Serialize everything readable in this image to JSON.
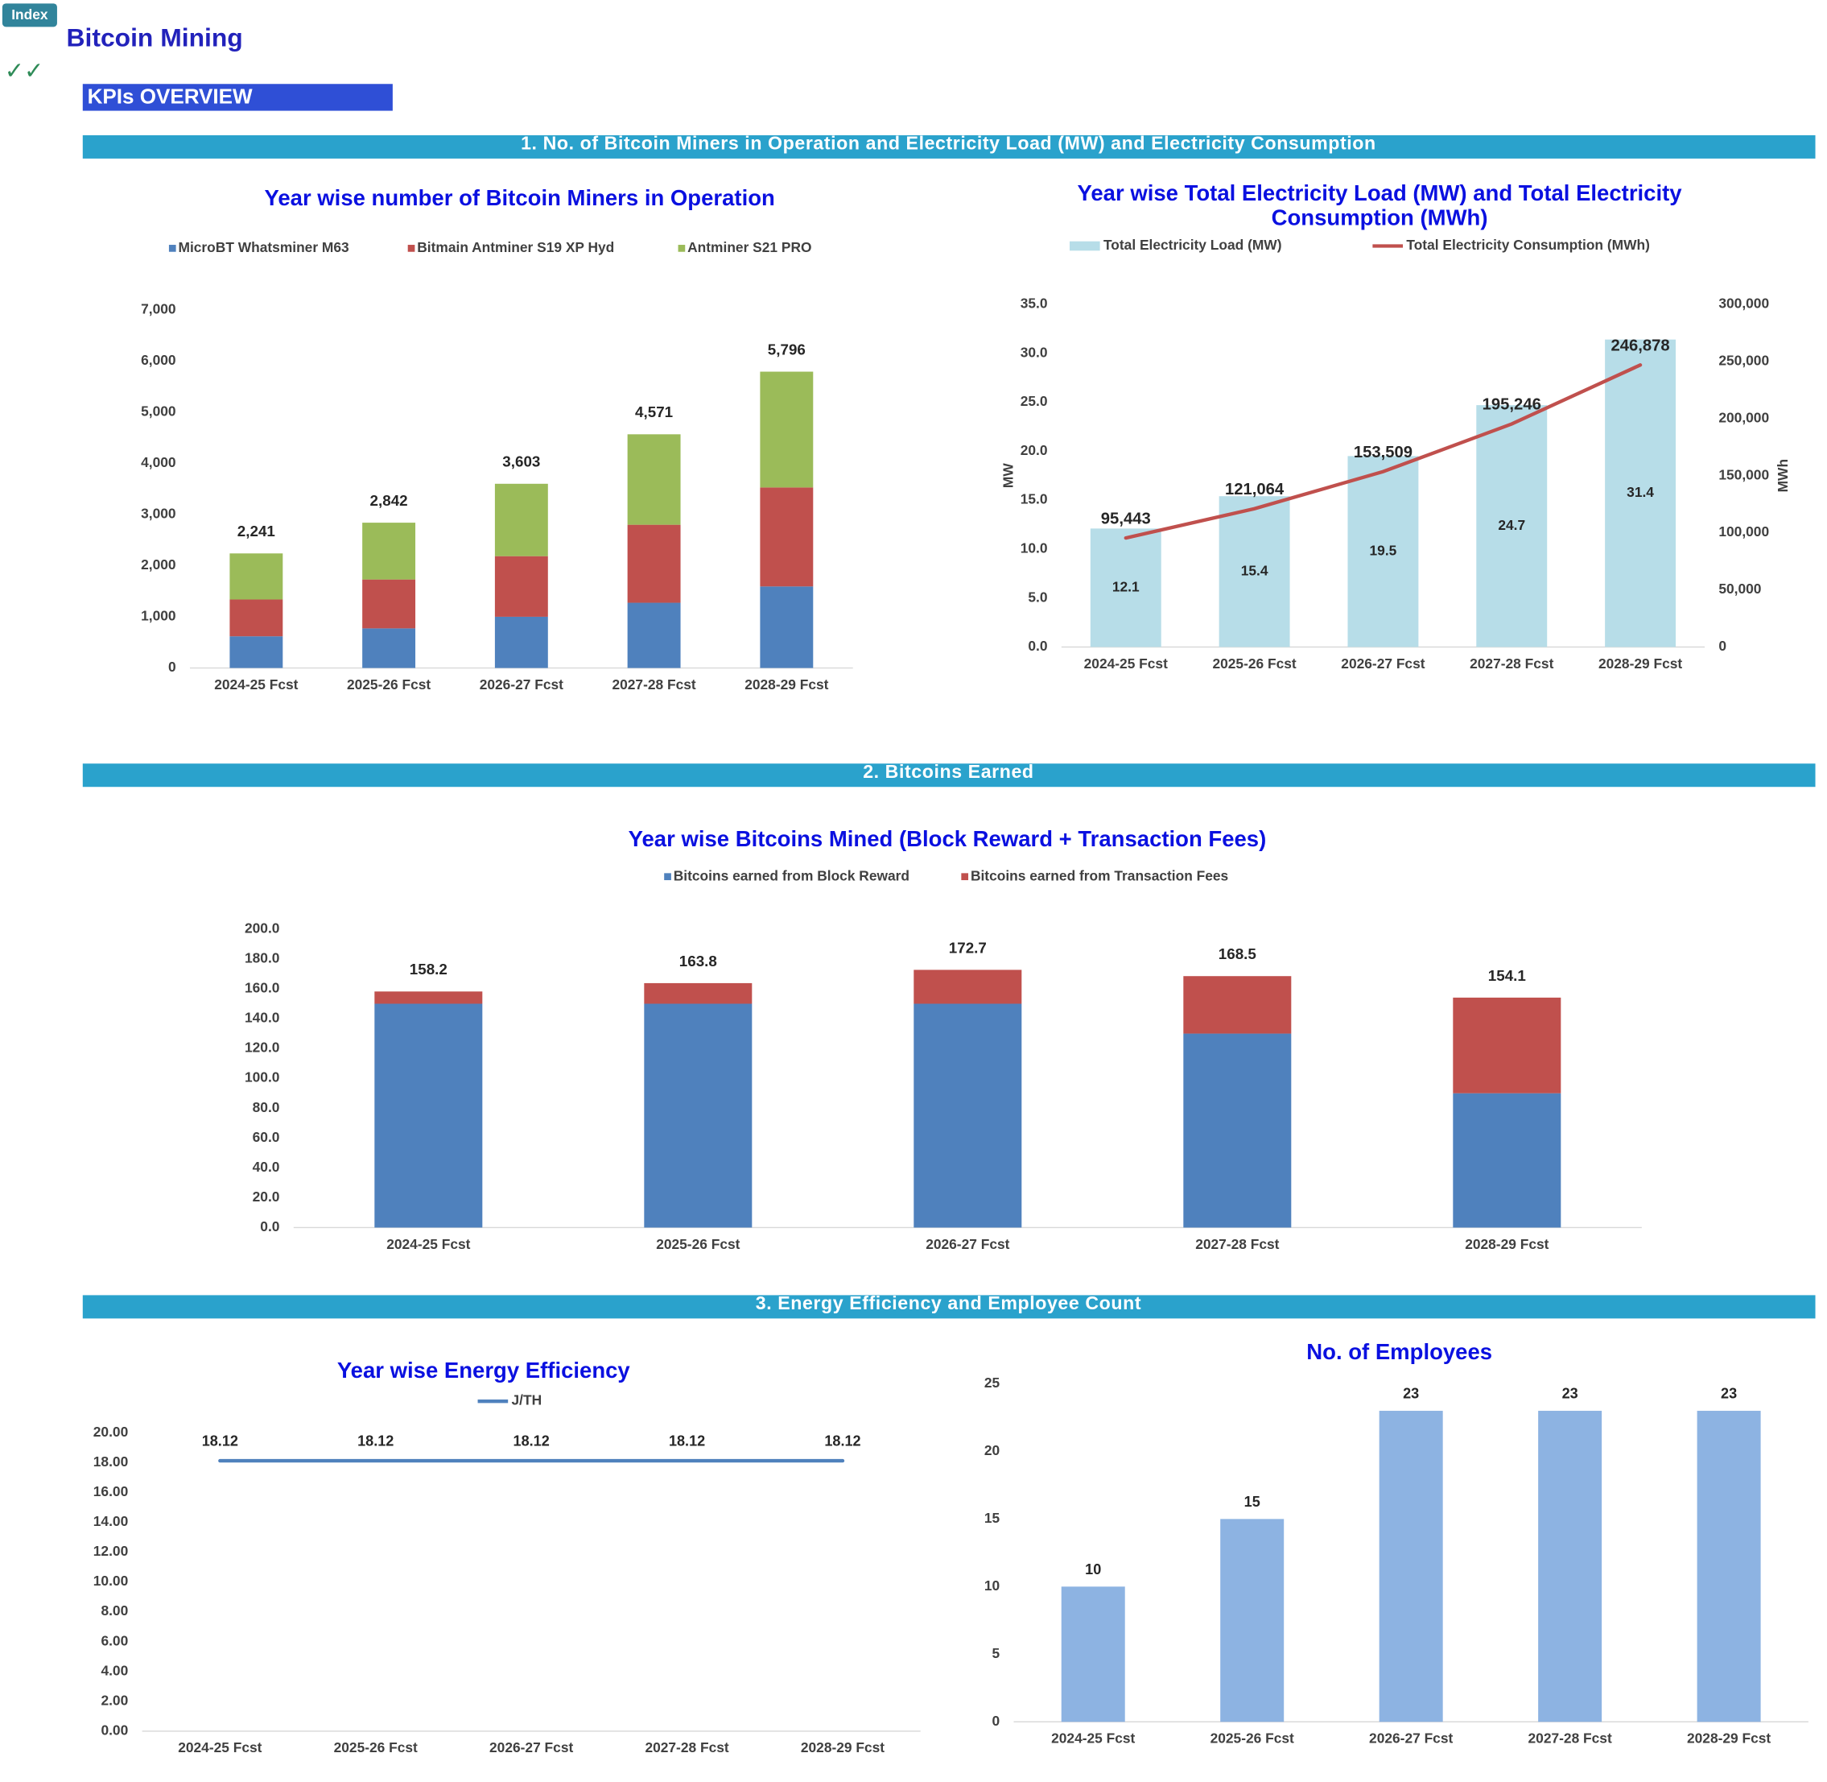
{
  "header": {
    "tab": "Index",
    "title": "Bitcoin Mining",
    "check": "✓✓",
    "subtitle": "KPIs OVERVIEW"
  },
  "sections": [
    "1. No. of Bitcoin Miners in Operation and Electricity Load (MW) and Electricity Consumption",
    "2. Bitcoins Earned",
    "3. Energy Efficiency and Employee Count"
  ],
  "chart_data": [
    {
      "type": "bar",
      "stacked": true,
      "title": "Year wise number of Bitcoin Miners in Operation",
      "categories": [
        "2024-25 Fcst",
        "2025-26 Fcst",
        "2026-27 Fcst",
        "2027-28 Fcst",
        "2028-29 Fcst"
      ],
      "series": [
        {
          "name": "MicroBT Whatsminer M63",
          "color": "#4f81bd",
          "values": [
            620,
            775,
            1002,
            1276,
            1595
          ]
        },
        {
          "name": "Bitmain Antminer S19 XP Hyd",
          "color": "#c0504d",
          "values": [
            720,
            956,
            1185,
            1526,
            1936
          ]
        },
        {
          "name": "Antminer S21 PRO",
          "color": "#9bbb59",
          "values": [
            901,
            1111,
            1416,
            1769,
            2265
          ]
        }
      ],
      "totals": [
        2241,
        2842,
        3603,
        4571,
        5796
      ],
      "total_labels": [
        "2,241",
        "2,842",
        "3,603",
        "4,571",
        "5,796"
      ],
      "ylim": [
        0,
        7000
      ],
      "yticks": [
        0,
        {
          "value": 1000,
          "label": "1,000"
        },
        {
          "value": 2000,
          "label": "2,000"
        },
        {
          "value": 3000,
          "label": "3,000"
        },
        {
          "value": 4000,
          "label": "4,000"
        },
        {
          "value": 5000,
          "label": "5,000"
        },
        {
          "value": 6000,
          "label": "6,000"
        },
        {
          "value": 7000,
          "label": "7,000"
        }
      ],
      "grid": false
    },
    {
      "type": "combo",
      "title": "Year wise Total Electricity Load (MW) and Total Electricity Consumption (MWh)",
      "ylabel": "MW",
      "y2label": "MWh",
      "categories": [
        "2024-25 Fcst",
        "2025-26 Fcst",
        "2026-27 Fcst",
        "2027-28 Fcst",
        "2028-29 Fcst"
      ],
      "series": [
        {
          "name": "Total Electricity Load (MW)",
          "color": "#b7dde8",
          "values": [
            12.1,
            15.4,
            19.5,
            24.7,
            31.4
          ]
        },
        {
          "name": "Total Electricity Consumption (MWh)",
          "color": "#c0504d",
          "axis": "y2",
          "values": [
            95443,
            121064,
            153509,
            195246,
            246878
          ],
          "value_labels": [
            "95,443",
            "121,064",
            "153,509",
            "195,246",
            "246,878"
          ]
        }
      ],
      "ylim": [
        0,
        35
      ],
      "yticks": [
        {
          "value": 0,
          "label": "0.0"
        },
        {
          "value": 5,
          "label": "5.0"
        },
        {
          "value": 10,
          "label": "10.0"
        },
        {
          "value": 15,
          "label": "15.0"
        },
        {
          "value": 20,
          "label": "20.0"
        },
        {
          "value": 25,
          "label": "25.0"
        },
        {
          "value": 30,
          "label": "30.0"
        },
        {
          "value": 35,
          "label": "35.0"
        }
      ],
      "y2lim": [
        0,
        300000
      ],
      "y2ticks": [
        0,
        {
          "value": 50000,
          "label": "50,000"
        },
        {
          "value": 100000,
          "label": "100,000"
        },
        {
          "value": 150000,
          "label": "150,000"
        },
        {
          "value": 200000,
          "label": "200,000"
        },
        {
          "value": 250000,
          "label": "250,000"
        },
        {
          "value": 300000,
          "label": "300,000"
        }
      ],
      "grid": false
    },
    {
      "type": "bar",
      "stacked": true,
      "title": "Year wise Bitcoins Mined (Block Reward + Transaction Fees)",
      "categories": [
        "2024-25 Fcst",
        "2025-26 Fcst",
        "2026-27 Fcst",
        "2027-28 Fcst",
        "2028-29 Fcst"
      ],
      "series": [
        {
          "name": "Bitcoins earned from Block Reward",
          "color": "#4f81bd",
          "values": [
            150,
            150,
            150,
            130,
            90
          ]
        },
        {
          "name": "Bitcoins earned from Transaction Fees",
          "color": "#c0504d",
          "values": [
            8.2,
            13.8,
            22.7,
            38.5,
            64.1
          ]
        }
      ],
      "totals": [
        158.2,
        163.8,
        172.7,
        168.5,
        154.1
      ],
      "ylim": [
        0,
        200
      ],
      "yticks": [
        {
          "value": 0,
          "label": "0.0"
        },
        {
          "value": 20,
          "label": "20.0"
        },
        {
          "value": 40,
          "label": "40.0"
        },
        {
          "value": 60,
          "label": "60.0"
        },
        {
          "value": 80,
          "label": "80.0"
        },
        {
          "value": 100,
          "label": "100.0"
        },
        {
          "value": 120,
          "label": "120.0"
        },
        {
          "value": 140,
          "label": "140.0"
        },
        {
          "value": 160,
          "label": "160.0"
        },
        {
          "value": 180,
          "label": "180.0"
        },
        {
          "value": 200,
          "label": "200.0"
        }
      ],
      "grid": false
    },
    {
      "type": "line",
      "title": "Year wise Energy Efficiency",
      "categories": [
        "2024-25 Fcst",
        "2025-26 Fcst",
        "2026-27 Fcst",
        "2027-28 Fcst",
        "2028-29 Fcst"
      ],
      "series": [
        {
          "name": "J/TH",
          "color": "#4f81bd",
          "values": [
            18.12,
            18.12,
            18.12,
            18.12,
            18.12
          ]
        }
      ],
      "ylim": [
        0,
        20
      ],
      "yticks": [
        {
          "value": 0,
          "label": "0.00"
        },
        {
          "value": 2,
          "label": "2.00"
        },
        {
          "value": 4,
          "label": "4.00"
        },
        {
          "value": 6,
          "label": "6.00"
        },
        {
          "value": 8,
          "label": "8.00"
        },
        {
          "value": 10,
          "label": "10.00"
        },
        {
          "value": 12,
          "label": "12.00"
        },
        {
          "value": 14,
          "label": "14.00"
        },
        {
          "value": 16,
          "label": "16.00"
        },
        {
          "value": 18,
          "label": "18.00"
        },
        {
          "value": 20,
          "label": "20.00"
        }
      ],
      "grid": false
    },
    {
      "type": "bar",
      "title": "No. of Employees",
      "categories": [
        "2024-25 Fcst",
        "2025-26 Fcst",
        "2026-27 Fcst",
        "2027-28 Fcst",
        "2028-29 Fcst"
      ],
      "values": [
        10,
        15,
        23,
        23,
        23
      ],
      "color": "#8db3e2",
      "ylim": [
        0,
        25
      ],
      "yticks": [
        0,
        5,
        10,
        15,
        20,
        25
      ],
      "grid": false
    }
  ]
}
